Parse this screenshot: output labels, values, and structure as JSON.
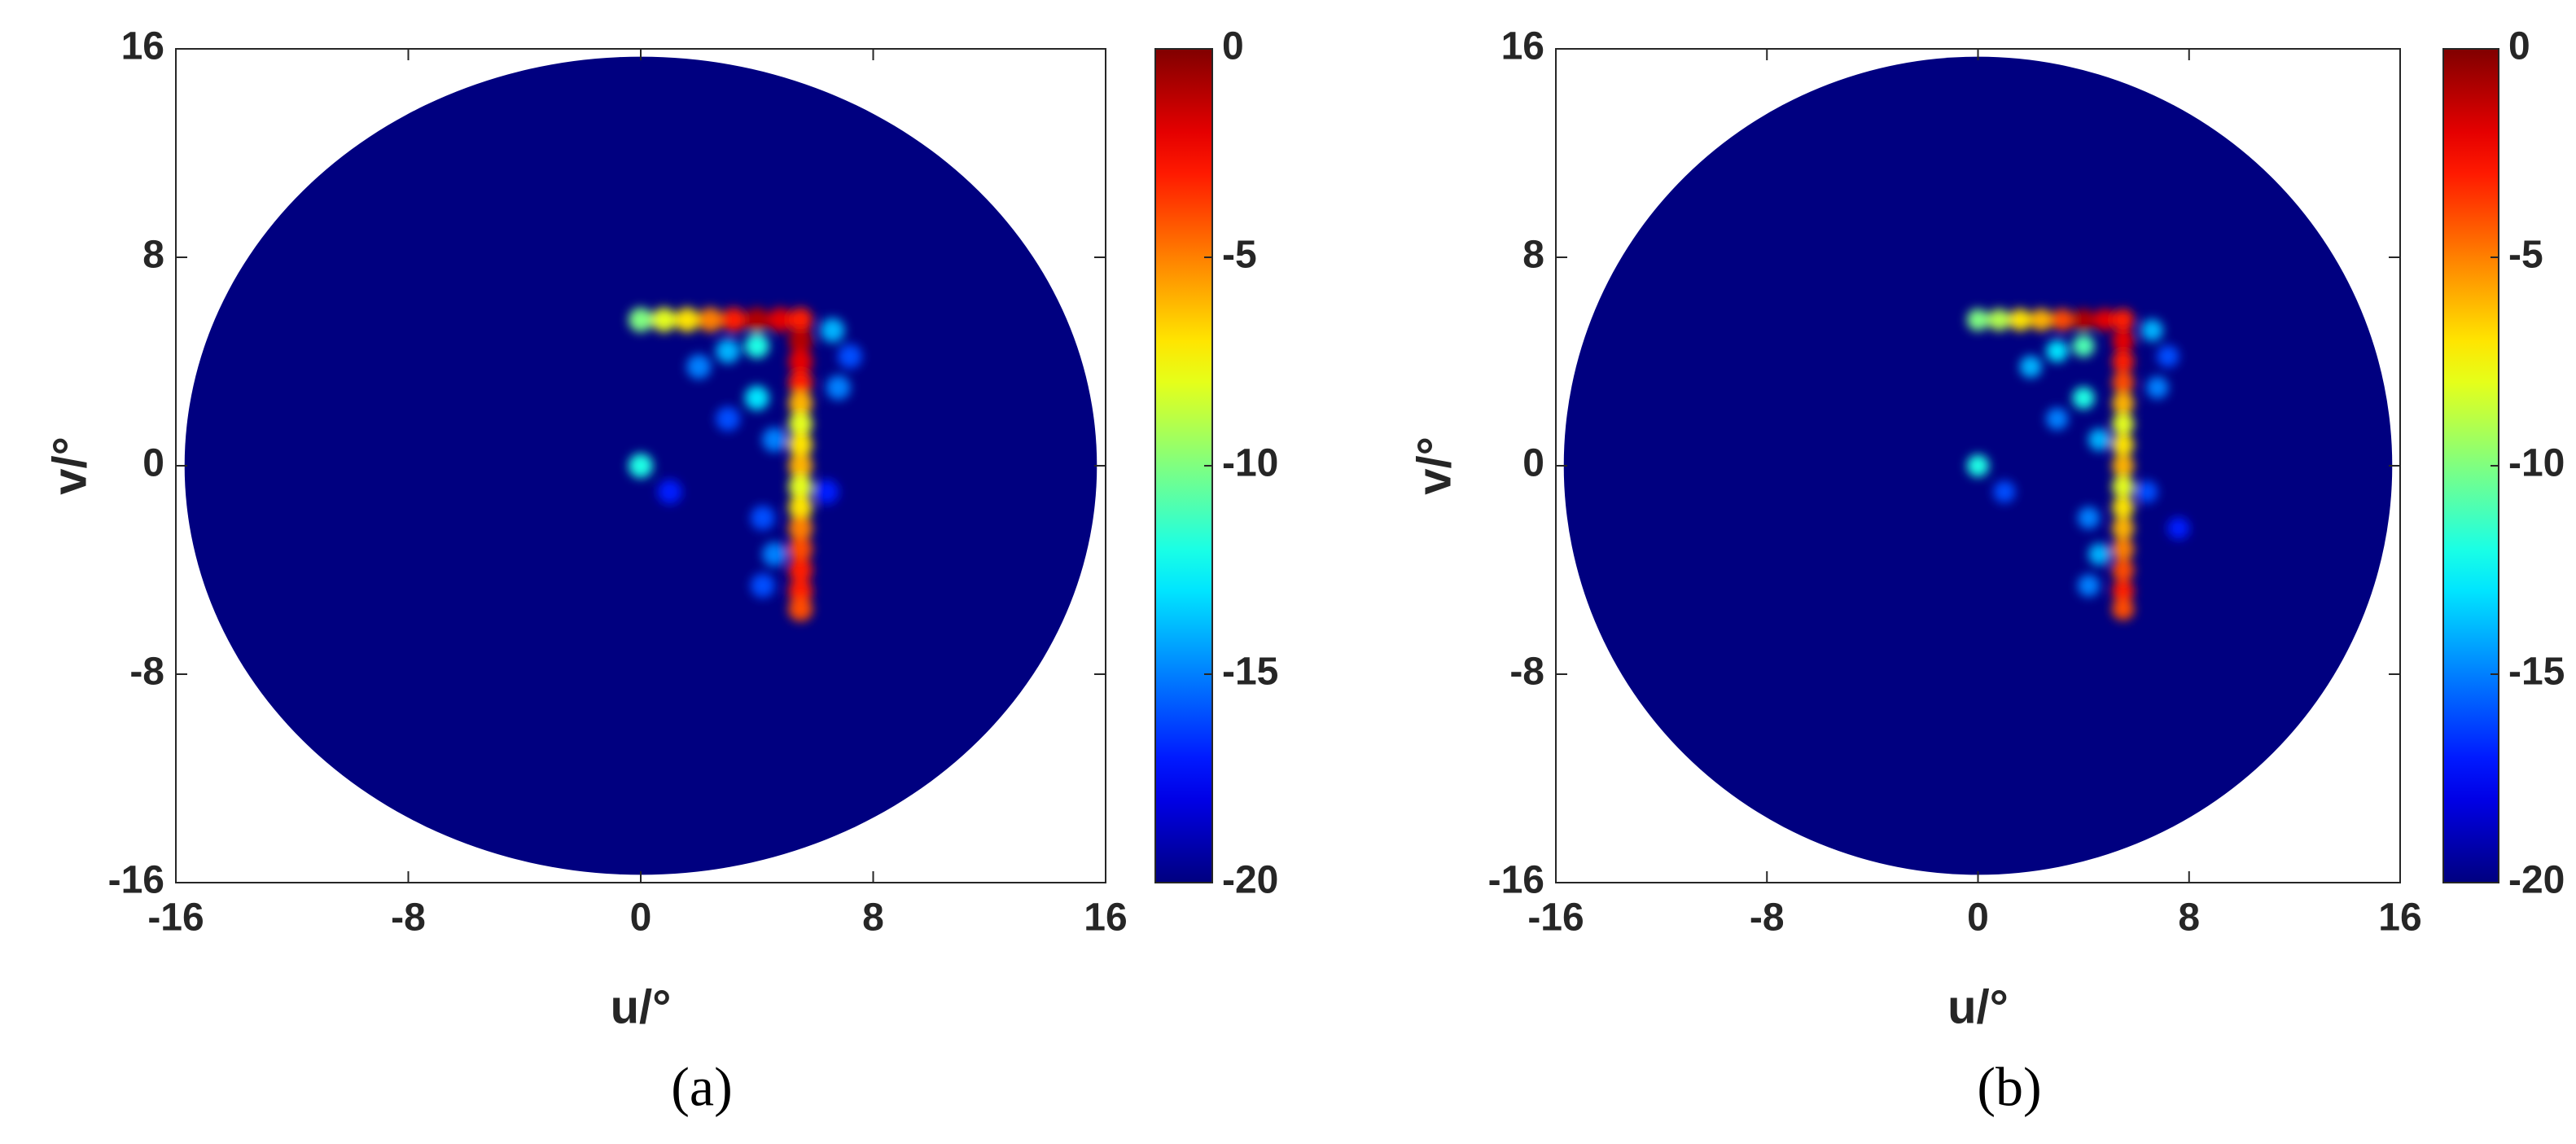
{
  "chart_data": [
    {
      "type": "heatmap",
      "caption": "(a)",
      "xlabel": "u/°",
      "ylabel": "v/°",
      "xlim": [
        -16,
        16
      ],
      "ylim": [
        -16,
        16
      ],
      "xticks": [
        -16,
        -8,
        0,
        8,
        16
      ],
      "yticks": [
        -16,
        -8,
        0,
        8,
        16
      ],
      "clim": [
        -20,
        0
      ],
      "cticks": [
        -20,
        -15,
        -10,
        -5,
        0
      ],
      "colormap": "jet",
      "mask_radius": 15.7,
      "x": [
        0,
        0.8,
        1.6,
        2.4,
        3.2,
        4,
        4.8,
        5.5,
        5.5,
        5.5,
        5.5,
        5.5,
        5.5,
        5.5,
        5.5,
        5.5,
        5.5,
        5.5,
        5.5,
        5.5,
        5.5,
        5.5,
        0,
        4,
        3,
        2,
        6.6,
        7.2,
        6.8,
        4,
        3,
        4.6,
        4.2,
        4.6,
        4.2,
        1,
        6.4
      ],
      "y": [
        5.6,
        5.6,
        5.6,
        5.6,
        5.6,
        5.6,
        5.6,
        5.6,
        4.8,
        4,
        3.2,
        2.4,
        1.6,
        0.8,
        0,
        -0.8,
        -1.6,
        -2.4,
        -3.2,
        -4,
        -4.8,
        -5.5,
        0,
        4.6,
        4.4,
        3.8,
        5.2,
        4.2,
        3,
        2.6,
        1.8,
        1,
        -2,
        -3.4,
        -4.6,
        -1,
        -1
      ],
      "values": [
        -10,
        -8,
        -7,
        -5,
        -3,
        -1,
        -2,
        -3,
        -1,
        -2,
        -3,
        -6,
        -8,
        -7,
        -6,
        -8,
        -7,
        -5,
        -4,
        -3,
        -3,
        -4,
        -12,
        -12,
        -14,
        -15,
        -14,
        -16,
        -15,
        -13,
        -16,
        -15,
        -16,
        -15,
        -16,
        -17,
        -17
      ]
    },
    {
      "type": "heatmap",
      "caption": "(b)",
      "xlabel": "u/°",
      "ylabel": "v/°",
      "xlim": [
        -16,
        16
      ],
      "ylim": [
        -16,
        16
      ],
      "xticks": [
        -16,
        -8,
        0,
        8,
        16
      ],
      "yticks": [
        -16,
        -8,
        0,
        8,
        16
      ],
      "clim": [
        -20,
        0
      ],
      "cticks": [
        -20,
        -15,
        -10,
        -5,
        0
      ],
      "colormap": "jet",
      "mask_radius": 15.7,
      "x": [
        0,
        0.8,
        1.6,
        2.4,
        3.2,
        4,
        4.8,
        5.5,
        5.5,
        5.5,
        5.5,
        5.5,
        5.5,
        5.5,
        5.5,
        5.5,
        5.5,
        5.5,
        5.5,
        5.5,
        5.5,
        5.5,
        0,
        4,
        3,
        2,
        6.6,
        7.2,
        6.8,
        4,
        3,
        4.6,
        4.2,
        4.6,
        4.2,
        1,
        6.4,
        7.6
      ],
      "y": [
        5.6,
        5.6,
        5.6,
        5.6,
        5.6,
        5.6,
        5.6,
        5.6,
        4.8,
        4,
        3.2,
        2.4,
        1.6,
        0.8,
        0,
        -0.8,
        -1.6,
        -2.4,
        -3.2,
        -4,
        -4.8,
        -5.5,
        0,
        4.6,
        4.4,
        3.8,
        5.2,
        4.2,
        3,
        2.6,
        1.8,
        1,
        -2,
        -3.4,
        -4.6,
        -1,
        -1,
        -2.4
      ],
      "values": [
        -10,
        -9,
        -7,
        -6,
        -4,
        -1,
        -2,
        -3,
        -2,
        -3,
        -4,
        -6,
        -8,
        -7,
        -6,
        -8,
        -7,
        -6,
        -5,
        -4,
        -3,
        -4,
        -12,
        -11,
        -13,
        -14,
        -14,
        -16,
        -15,
        -12,
        -15,
        -14,
        -15,
        -14,
        -15,
        -16,
        -16,
        -17
      ]
    }
  ]
}
